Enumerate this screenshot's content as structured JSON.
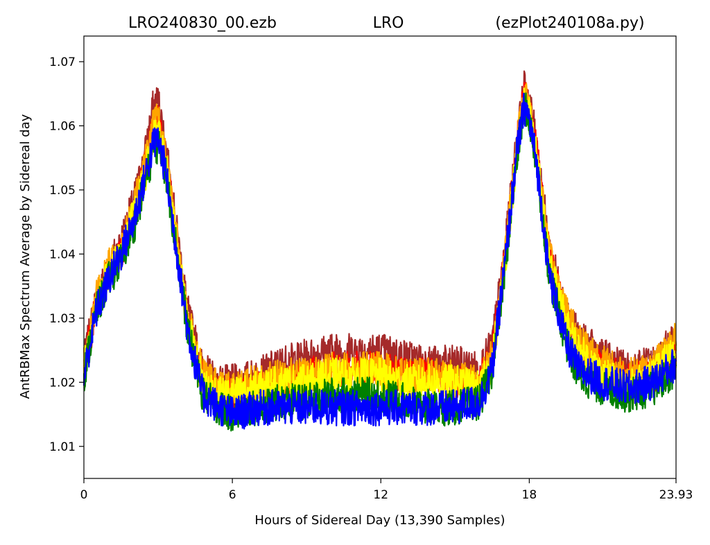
{
  "chart_data": {
    "type": "line",
    "title_parts": [
      "LRO240830_00.ezb",
      "LRO",
      "(ezPlot240108a.py)"
    ],
    "xlabel": "Hours of Sidereal Day  (13,390 Samples)",
    "ylabel": "AntRBMax Spectrum Average by Sidereal day",
    "xlim": [
      0,
      23.93
    ],
    "ylim": [
      1.005,
      1.074
    ],
    "x_ticks": [
      0,
      6,
      12,
      18,
      23.93
    ],
    "x_tick_labels": [
      "0",
      "6",
      "12",
      "18",
      "23.93"
    ],
    "y_ticks": [
      1.01,
      1.02,
      1.03,
      1.04,
      1.05,
      1.06,
      1.07
    ],
    "y_tick_labels": [
      "1.01",
      "1.02",
      "1.03",
      "1.04",
      "1.05",
      "1.06",
      "1.07"
    ],
    "grid": false,
    "legend": "none",
    "noise_estimate": 0.0028,
    "series": [
      {
        "color": "#a52a2a",
        "x": [
          0,
          0.5,
          1,
          1.5,
          2,
          2.4,
          2.8,
          3.0,
          3.3,
          3.7,
          4.2,
          4.8,
          5.5,
          6,
          7,
          8,
          9,
          10,
          11,
          12,
          13,
          14,
          15,
          16,
          16.5,
          17,
          17.5,
          17.8,
          18.0,
          18.3,
          18.8,
          19.5,
          20,
          21,
          22,
          23,
          23.93
        ],
        "y": [
          1.023,
          1.033,
          1.038,
          1.042,
          1.048,
          1.054,
          1.063,
          1.064,
          1.057,
          1.045,
          1.031,
          1.022,
          1.02,
          1.02,
          1.021,
          1.023,
          1.024,
          1.025,
          1.025,
          1.025,
          1.024,
          1.023,
          1.023,
          1.022,
          1.026,
          1.04,
          1.058,
          1.066,
          1.064,
          1.057,
          1.041,
          1.031,
          1.027,
          1.024,
          1.022,
          1.023,
          1.027
        ]
      },
      {
        "color": "#ff0000",
        "x": [
          0,
          0.5,
          1,
          1.5,
          2,
          2.4,
          2.8,
          3.0,
          3.3,
          3.7,
          4.2,
          4.8,
          5.5,
          6,
          7,
          8,
          9,
          10,
          11,
          12,
          13,
          14,
          15,
          16,
          16.5,
          17,
          17.5,
          17.8,
          18.0,
          18.3,
          18.8,
          19.5,
          20,
          21,
          22,
          23,
          23.93
        ],
        "y": [
          1.022,
          1.032,
          1.037,
          1.04,
          1.046,
          1.052,
          1.06,
          1.061,
          1.055,
          1.043,
          1.029,
          1.02,
          1.018,
          1.018,
          1.019,
          1.02,
          1.021,
          1.022,
          1.022,
          1.022,
          1.021,
          1.021,
          1.02,
          1.02,
          1.024,
          1.039,
          1.057,
          1.065,
          1.063,
          1.056,
          1.04,
          1.03,
          1.025,
          1.022,
          1.02,
          1.021,
          1.025
        ]
      },
      {
        "color": "#ffa500",
        "x": [
          0,
          0.5,
          1,
          1.5,
          2,
          2.4,
          2.8,
          3.0,
          3.3,
          3.7,
          4.2,
          4.8,
          5.5,
          6,
          7,
          8,
          9,
          10,
          11,
          12,
          13,
          14,
          15,
          16,
          16.5,
          17,
          17.5,
          17.8,
          18.0,
          18.3,
          18.8,
          19.5,
          20,
          21,
          22,
          23,
          23.93
        ],
        "y": [
          1.023,
          1.033,
          1.038,
          1.041,
          1.047,
          1.053,
          1.06,
          1.061,
          1.055,
          1.044,
          1.03,
          1.021,
          1.019,
          1.019,
          1.02,
          1.021,
          1.021,
          1.022,
          1.022,
          1.022,
          1.021,
          1.021,
          1.021,
          1.02,
          1.024,
          1.039,
          1.057,
          1.065,
          1.063,
          1.056,
          1.04,
          1.031,
          1.027,
          1.023,
          1.021,
          1.022,
          1.027
        ]
      },
      {
        "color": "#ffff00",
        "x": [
          0,
          0.5,
          1,
          1.5,
          2,
          2.4,
          2.8,
          3.0,
          3.3,
          3.7,
          4.2,
          4.8,
          5.5,
          6,
          7,
          8,
          9,
          10,
          11,
          12,
          13,
          14,
          15,
          16,
          16.5,
          17,
          17.5,
          17.8,
          18.0,
          18.3,
          18.8,
          19.5,
          20,
          21,
          22,
          23,
          23.93
        ],
        "y": [
          1.022,
          1.032,
          1.037,
          1.04,
          1.046,
          1.051,
          1.058,
          1.059,
          1.054,
          1.043,
          1.029,
          1.02,
          1.018,
          1.018,
          1.019,
          1.02,
          1.02,
          1.021,
          1.021,
          1.021,
          1.02,
          1.02,
          1.02,
          1.019,
          1.023,
          1.038,
          1.056,
          1.064,
          1.062,
          1.055,
          1.039,
          1.029,
          1.025,
          1.021,
          1.019,
          1.021,
          1.025
        ]
      },
      {
        "color": "#008000",
        "x": [
          0,
          0.5,
          1,
          1.5,
          2,
          2.4,
          2.8,
          3.0,
          3.3,
          3.7,
          4.2,
          4.8,
          5.5,
          6,
          7,
          8,
          9,
          10,
          11,
          12,
          13,
          14,
          15,
          16,
          16.5,
          17,
          17.5,
          17.8,
          18.0,
          18.3,
          18.8,
          19.5,
          20,
          21,
          22,
          23,
          23.93
        ],
        "y": [
          1.021,
          1.031,
          1.036,
          1.039,
          1.044,
          1.05,
          1.056,
          1.057,
          1.053,
          1.042,
          1.028,
          1.018,
          1.016,
          1.015,
          1.016,
          1.017,
          1.017,
          1.018,
          1.018,
          1.018,
          1.017,
          1.016,
          1.016,
          1.017,
          1.022,
          1.037,
          1.055,
          1.063,
          1.061,
          1.054,
          1.037,
          1.026,
          1.021,
          1.019,
          1.018,
          1.019,
          1.022
        ]
      },
      {
        "color": "#0000ff",
        "x": [
          0,
          0.5,
          1,
          1.5,
          2,
          2.4,
          2.8,
          3.0,
          3.3,
          3.7,
          4.2,
          4.8,
          5.5,
          6,
          7,
          8,
          9,
          10,
          11,
          12,
          13,
          14,
          15,
          16,
          16.5,
          17,
          17.5,
          17.8,
          18.0,
          18.3,
          18.8,
          19.5,
          20,
          21,
          22,
          23,
          23.93
        ],
        "y": [
          1.021,
          1.031,
          1.036,
          1.04,
          1.045,
          1.051,
          1.057,
          1.058,
          1.053,
          1.042,
          1.028,
          1.018,
          1.016,
          1.015,
          1.016,
          1.016,
          1.016,
          1.016,
          1.016,
          1.016,
          1.016,
          1.016,
          1.016,
          1.017,
          1.022,
          1.038,
          1.056,
          1.063,
          1.061,
          1.054,
          1.037,
          1.026,
          1.022,
          1.02,
          1.019,
          1.02,
          1.023
        ]
      }
    ]
  }
}
